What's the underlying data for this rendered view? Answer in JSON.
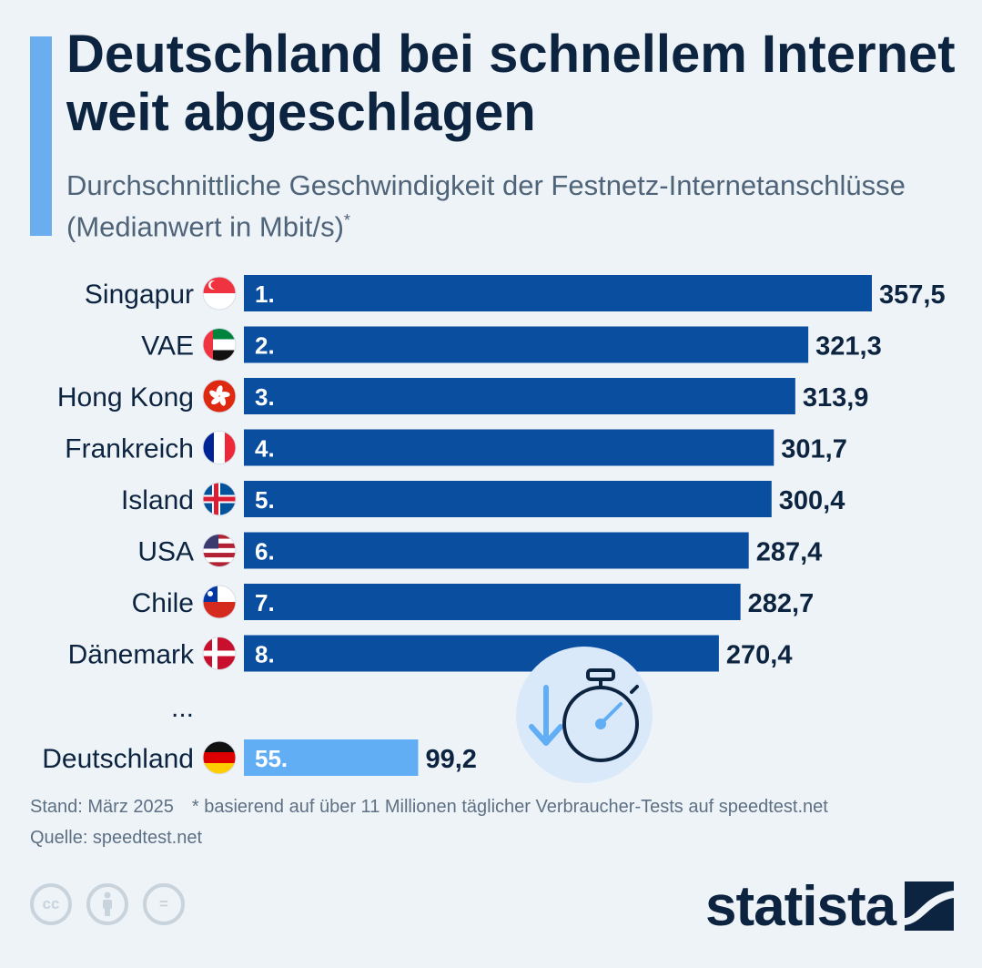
{
  "title": "Deutschland bei schnellem Internet weit abgeschlagen",
  "subtitle": "Durchschnittliche Geschwindigkeit der Festnetz-Internetanschlüsse (Medianwert in Mbit/s)",
  "subtitle_mark": "*",
  "footer": {
    "date": "Stand: März 2025",
    "note": "* basierend auf über 11 Millionen täglicher Verbraucher-Tests auf speedtest.net",
    "source": "Quelle: speedtest.net"
  },
  "license_icons": [
    "cc-icon",
    "attribution-icon",
    "no-derivatives-icon"
  ],
  "license_labels": {
    "cc": "cc",
    "nd": "="
  },
  "brand": "statista",
  "colors": {
    "bar": "#0a4ea0",
    "highlight": "#62aef5",
    "text": "#0d2440",
    "background": "#eef3f8"
  },
  "chart_data": {
    "type": "bar",
    "orientation": "horizontal",
    "categories": [
      "Singapur",
      "VAE",
      "Hong Kong",
      "Frankreich",
      "Island",
      "USA",
      "Chile",
      "Dänemark",
      "Deutschland"
    ],
    "ranks": [
      "1.",
      "2.",
      "3.",
      "4.",
      "5.",
      "6.",
      "7.",
      "8.",
      "55."
    ],
    "values": [
      357.5,
      321.3,
      313.9,
      301.7,
      300.4,
      287.4,
      282.7,
      270.4,
      99.2
    ],
    "value_labels": [
      "357,5",
      "321,3",
      "313,9",
      "301,7",
      "300,4",
      "287,4",
      "282,7",
      "270,4",
      "99,2"
    ],
    "flags": [
      "singapore-flag-icon",
      "uae-flag-icon",
      "hong-kong-flag-icon",
      "france-flag-icon",
      "iceland-flag-icon",
      "usa-flag-icon",
      "chile-flag-icon",
      "denmark-flag-icon",
      "germany-flag-icon"
    ],
    "gap_label": "...",
    "highlight_category": "Deutschland",
    "xlim": [
      0,
      357.5
    ],
    "grid": false,
    "decoration": "stopwatch-icon"
  }
}
